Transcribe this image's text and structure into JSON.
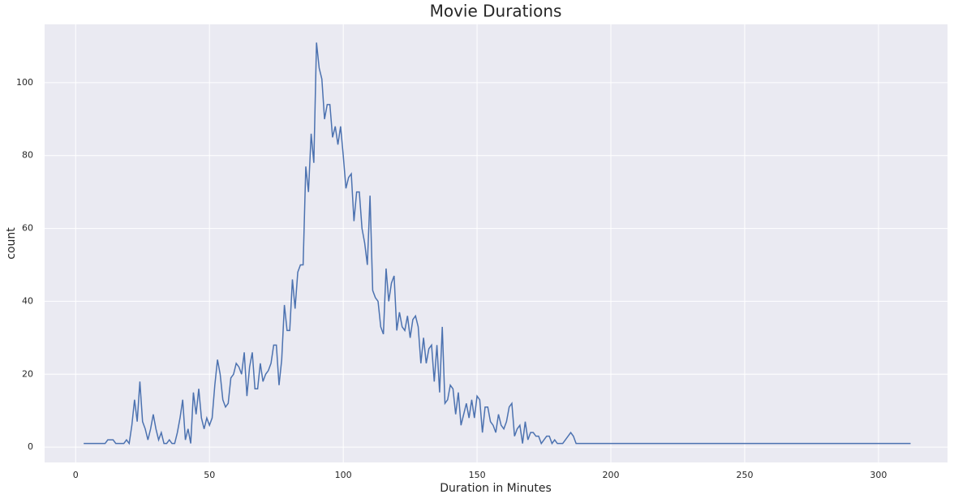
{
  "chart_data": {
    "type": "line",
    "title": "Movie Durations",
    "x_label": "Duration in Minutes",
    "y_label": "count",
    "x": [
      3,
      8,
      10,
      11,
      12,
      13,
      14,
      15,
      16,
      17,
      18,
      19,
      20,
      21,
      22,
      23,
      24,
      25,
      26,
      27,
      28,
      29,
      30,
      31,
      32,
      33,
      34,
      35,
      36,
      37,
      38,
      39,
      40,
      41,
      42,
      43,
      44,
      45,
      46,
      47,
      48,
      49,
      50,
      51,
      52,
      53,
      54,
      55,
      56,
      57,
      58,
      59,
      60,
      61,
      62,
      63,
      64,
      65,
      66,
      67,
      68,
      69,
      70,
      71,
      72,
      73,
      74,
      75,
      76,
      77,
      78,
      79,
      80,
      81,
      82,
      83,
      84,
      85,
      86,
      87,
      88,
      89,
      90,
      91,
      92,
      93,
      94,
      95,
      96,
      97,
      98,
      99,
      100,
      101,
      102,
      103,
      104,
      105,
      106,
      107,
      108,
      109,
      110,
      111,
      112,
      113,
      114,
      115,
      116,
      117,
      118,
      119,
      120,
      121,
      122,
      123,
      124,
      125,
      126,
      127,
      128,
      129,
      130,
      131,
      132,
      133,
      134,
      135,
      136,
      137,
      138,
      139,
      140,
      141,
      142,
      143,
      144,
      145,
      146,
      147,
      148,
      149,
      150,
      151,
      152,
      153,
      154,
      155,
      156,
      157,
      158,
      159,
      160,
      161,
      162,
      163,
      164,
      165,
      166,
      167,
      168,
      169,
      170,
      171,
      172,
      173,
      174,
      175,
      176,
      177,
      178,
      179,
      180,
      181,
      182,
      183,
      184,
      185,
      186,
      187,
      188,
      312
    ],
    "series": [
      {
        "name": "count",
        "color": "#4c72b0",
        "values": [
          1,
          1,
          1,
          1,
          2,
          2,
          2,
          1,
          1,
          1,
          1,
          2,
          1,
          6,
          13,
          7,
          18,
          7,
          5,
          2,
          5,
          9,
          5,
          2,
          4,
          1,
          1,
          2,
          1,
          1,
          4,
          8,
          13,
          2,
          5,
          1,
          15,
          9,
          16,
          8,
          5,
          8,
          6,
          8,
          17,
          24,
          20,
          13,
          11,
          12,
          19,
          20,
          23,
          22,
          20,
          26,
          14,
          22,
          26,
          16,
          16,
          23,
          18,
          20,
          21,
          23,
          28,
          28,
          17,
          24,
          39,
          32,
          32,
          46,
          38,
          48,
          50,
          50,
          77,
          70,
          86,
          78,
          111,
          104,
          101,
          90,
          94,
          94,
          85,
          88,
          83,
          88,
          80,
          71,
          74,
          75,
          62,
          70,
          70,
          60,
          56,
          50,
          69,
          43,
          41,
          40,
          33,
          31,
          49,
          40,
          45,
          47,
          32,
          37,
          33,
          32,
          36,
          30,
          35,
          36,
          33,
          23,
          30,
          23,
          27,
          28,
          18,
          28,
          15,
          33,
          12,
          13,
          17,
          16,
          9,
          15,
          6,
          9,
          12,
          8,
          13,
          8,
          14,
          13,
          4,
          11,
          11,
          7,
          6,
          4,
          9,
          6,
          5,
          7,
          11,
          12,
          3,
          5,
          6,
          1,
          7,
          2,
          4,
          4,
          3,
          3,
          1,
          2,
          3,
          3,
          1,
          2,
          1,
          1,
          1,
          2,
          3,
          4,
          3,
          1,
          1,
          1
        ]
      }
    ],
    "xlim": [
      -11.6,
      325.8
    ],
    "ylim": [
      -4.2,
      116
    ],
    "xticks": [
      0,
      50,
      100,
      150,
      200,
      250,
      300
    ],
    "yticks": [
      0,
      20,
      40,
      60,
      80,
      100
    ],
    "grid": true
  }
}
